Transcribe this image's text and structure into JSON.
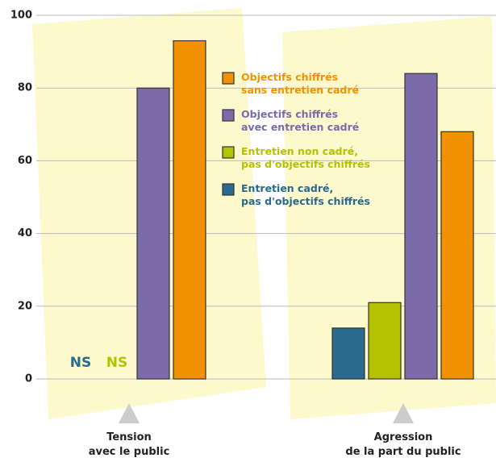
{
  "chart_data": {
    "type": "bar",
    "categories": [
      "Tension\navec le public",
      "Agression\nde la part du public"
    ],
    "series": [
      {
        "name": "Entretien cadré,\npas d'objectifs chiffrés",
        "color": "#2a6a8c",
        "values": [
          null,
          14
        ],
        "value_labels": [
          "NS",
          null
        ]
      },
      {
        "name": "Entretien non cadré,\npas d'objectifs chiffrés",
        "color": "#b5c200",
        "values": [
          null,
          21
        ],
        "value_labels": [
          "NS",
          null
        ]
      },
      {
        "name": "Objectifs chiffrés\navec entretien cadré",
        "color": "#7b6ba8",
        "values": [
          80,
          84
        ]
      },
      {
        "name": "Objectifs chiffrés\nsans entretien cadré",
        "color": "#f39200",
        "values": [
          93,
          68
        ]
      }
    ],
    "ylim": [
      0,
      100
    ],
    "yticks": [
      0,
      20,
      40,
      60,
      80,
      100
    ],
    "grid": true
  }
}
